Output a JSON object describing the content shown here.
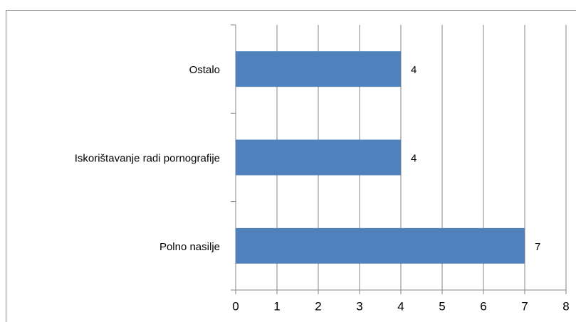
{
  "chart_data": {
    "type": "bar",
    "orientation": "horizontal",
    "categories": [
      "Ostalo",
      "Iskorištavanje radi pornografije",
      "Polno nasilje"
    ],
    "values": [
      4,
      4,
      7
    ],
    "color": "#4f81bd",
    "xlim": [
      0,
      8
    ],
    "xticks": [
      0,
      1,
      2,
      3,
      4,
      5,
      6,
      7,
      8
    ],
    "grid": true,
    "data_labels": true
  }
}
